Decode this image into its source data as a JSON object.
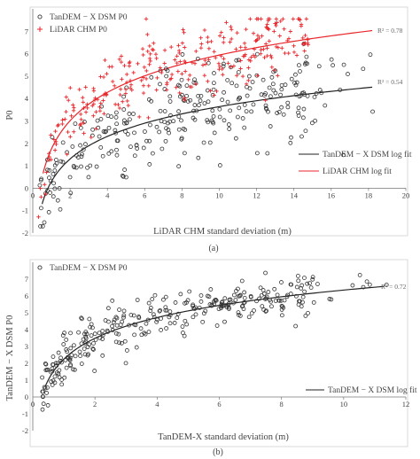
{
  "chart_data": [
    {
      "type": "scatter",
      "panel_label": "(a)",
      "xlabel": "LiDAR CHM standard deviation (m)",
      "ylabel": "P0",
      "xlim": [
        0,
        20
      ],
      "ylim": [
        -2,
        8
      ],
      "xticks": [
        "0",
        "2",
        "4",
        "6",
        "8",
        "10",
        "12",
        "14",
        "16",
        "18",
        "20"
      ],
      "yticks": [
        "-2",
        "-1",
        "0",
        "1",
        "2",
        "3",
        "4",
        "5",
        "6",
        "7"
      ],
      "legend_top": [
        "TanDEM − X DSM P0",
        "LiDAR CHM P0"
      ],
      "legend_bottom": [
        "TanDEM − X DSM log fit",
        "LiDAR CHM log fit"
      ],
      "series": [
        {
          "name": "TanDEM − X DSM P0",
          "marker": "circle",
          "color": "#333333",
          "points": "n=300; x≈0.3–18.4 m; y≈-1.6–4.9",
          "fit": {
            "name": "TanDEM − X DSM log fit",
            "a": 0.3,
            "b": 1.45,
            "x_from": 0.5,
            "x_to": 18.2,
            "r2": "R² = 0.54"
          }
        },
        {
          "name": "LiDAR CHM P0",
          "marker": "plus",
          "color": "#e8262b",
          "points": "n=300; x≈0.3–15 m; y≈-1.5–7.5",
          "fit": {
            "name": "LiDAR CHM log fit",
            "a": 1.75,
            "b": 1.82,
            "x_from": 0.55,
            "x_to": 18.2,
            "r2": "R² = 0.78"
          }
        }
      ]
    },
    {
      "type": "scatter",
      "panel_label": "(b)",
      "xlabel": "TanDEM-X standard deviation (m)",
      "ylabel": "TanDEM − X DSM P0",
      "xlim": [
        0,
        12
      ],
      "ylim": [
        -2,
        8
      ],
      "xticks": [
        "0",
        "2",
        "4",
        "6",
        "8",
        "10",
        "12"
      ],
      "yticks": [
        "-2",
        "-1",
        "0",
        "1",
        "2",
        "3",
        "4",
        "5",
        "6",
        "7"
      ],
      "legend_top": [
        "TanDEM − X DSM P0"
      ],
      "legend_bottom": [
        "TanDEM − X DSM log fit"
      ],
      "series": [
        {
          "name": "TanDEM − X DSM P0",
          "marker": "circle",
          "color": "#333333",
          "points": "n=320; x≈0.3–11.5 m; y≈-1.6–6.8",
          "fit": {
            "name": "TanDEM − X DSM log fit",
            "a": 2.25,
            "b": 1.78,
            "x_from": 0.4,
            "x_to": 11.3,
            "r2": "R² = 0.72"
          }
        }
      ]
    }
  ]
}
